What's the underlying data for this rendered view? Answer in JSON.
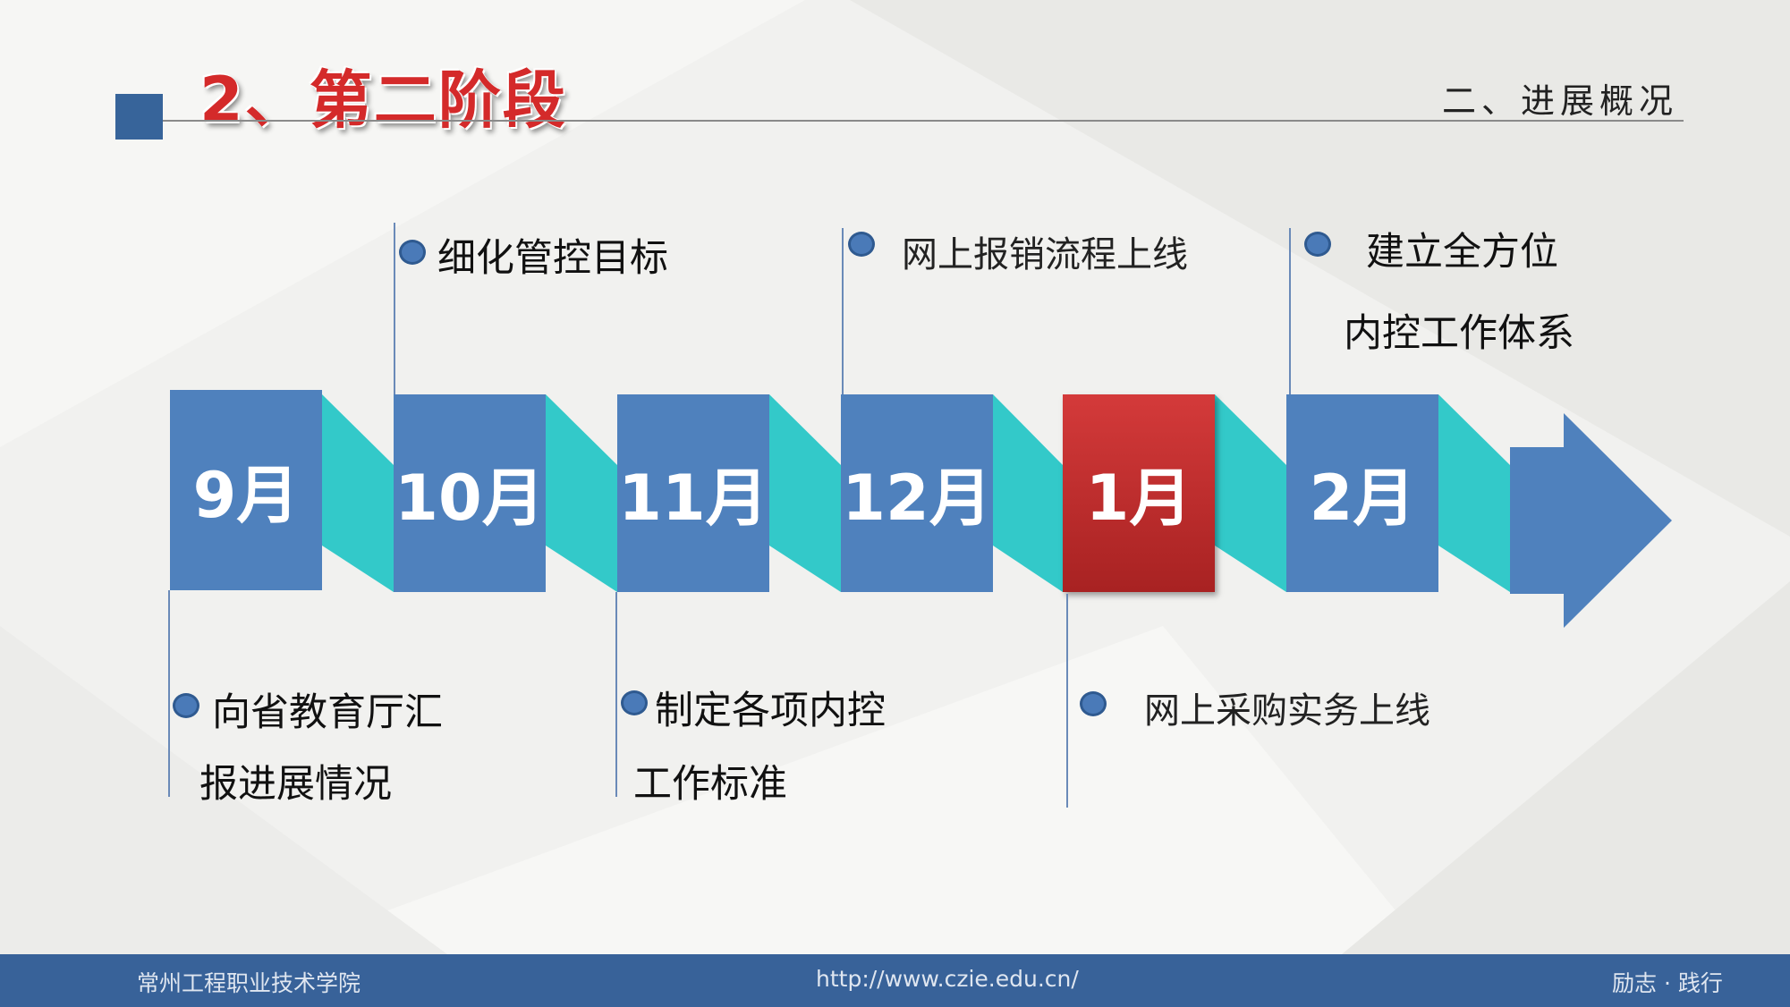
{
  "header": {
    "title": "2、第二阶段",
    "section": "二、进展概况"
  },
  "timeline": {
    "months": [
      {
        "label": "9月",
        "active": false
      },
      {
        "label": "10月",
        "active": false
      },
      {
        "label": "11月",
        "active": false
      },
      {
        "label": "12月",
        "active": false
      },
      {
        "label": "1月",
        "active": true
      },
      {
        "label": "2月",
        "active": false
      }
    ],
    "top_events": [
      {
        "lines": [
          "细化管控目标"
        ]
      },
      {
        "lines": [
          "网上报销流程上线"
        ]
      },
      {
        "lines": [
          "建立全方位",
          "内控工作体系"
        ]
      }
    ],
    "bottom_events": [
      {
        "lines": [
          "向省教育厅汇",
          "报进展情况"
        ]
      },
      {
        "lines": [
          "制定各项内控",
          "工作标准"
        ]
      },
      {
        "lines": [
          "网上采购实务上线"
        ]
      }
    ]
  },
  "footer": {
    "school": "常州工程职业技术学院",
    "url": "http://www.czie.edu.cn/",
    "motto": "励志 · 践行"
  },
  "colors": {
    "box": "#4f81bd",
    "active_box": "#c0302e",
    "connector": "#33c9c9",
    "footer": "#386299",
    "title": "#d42a2a"
  }
}
